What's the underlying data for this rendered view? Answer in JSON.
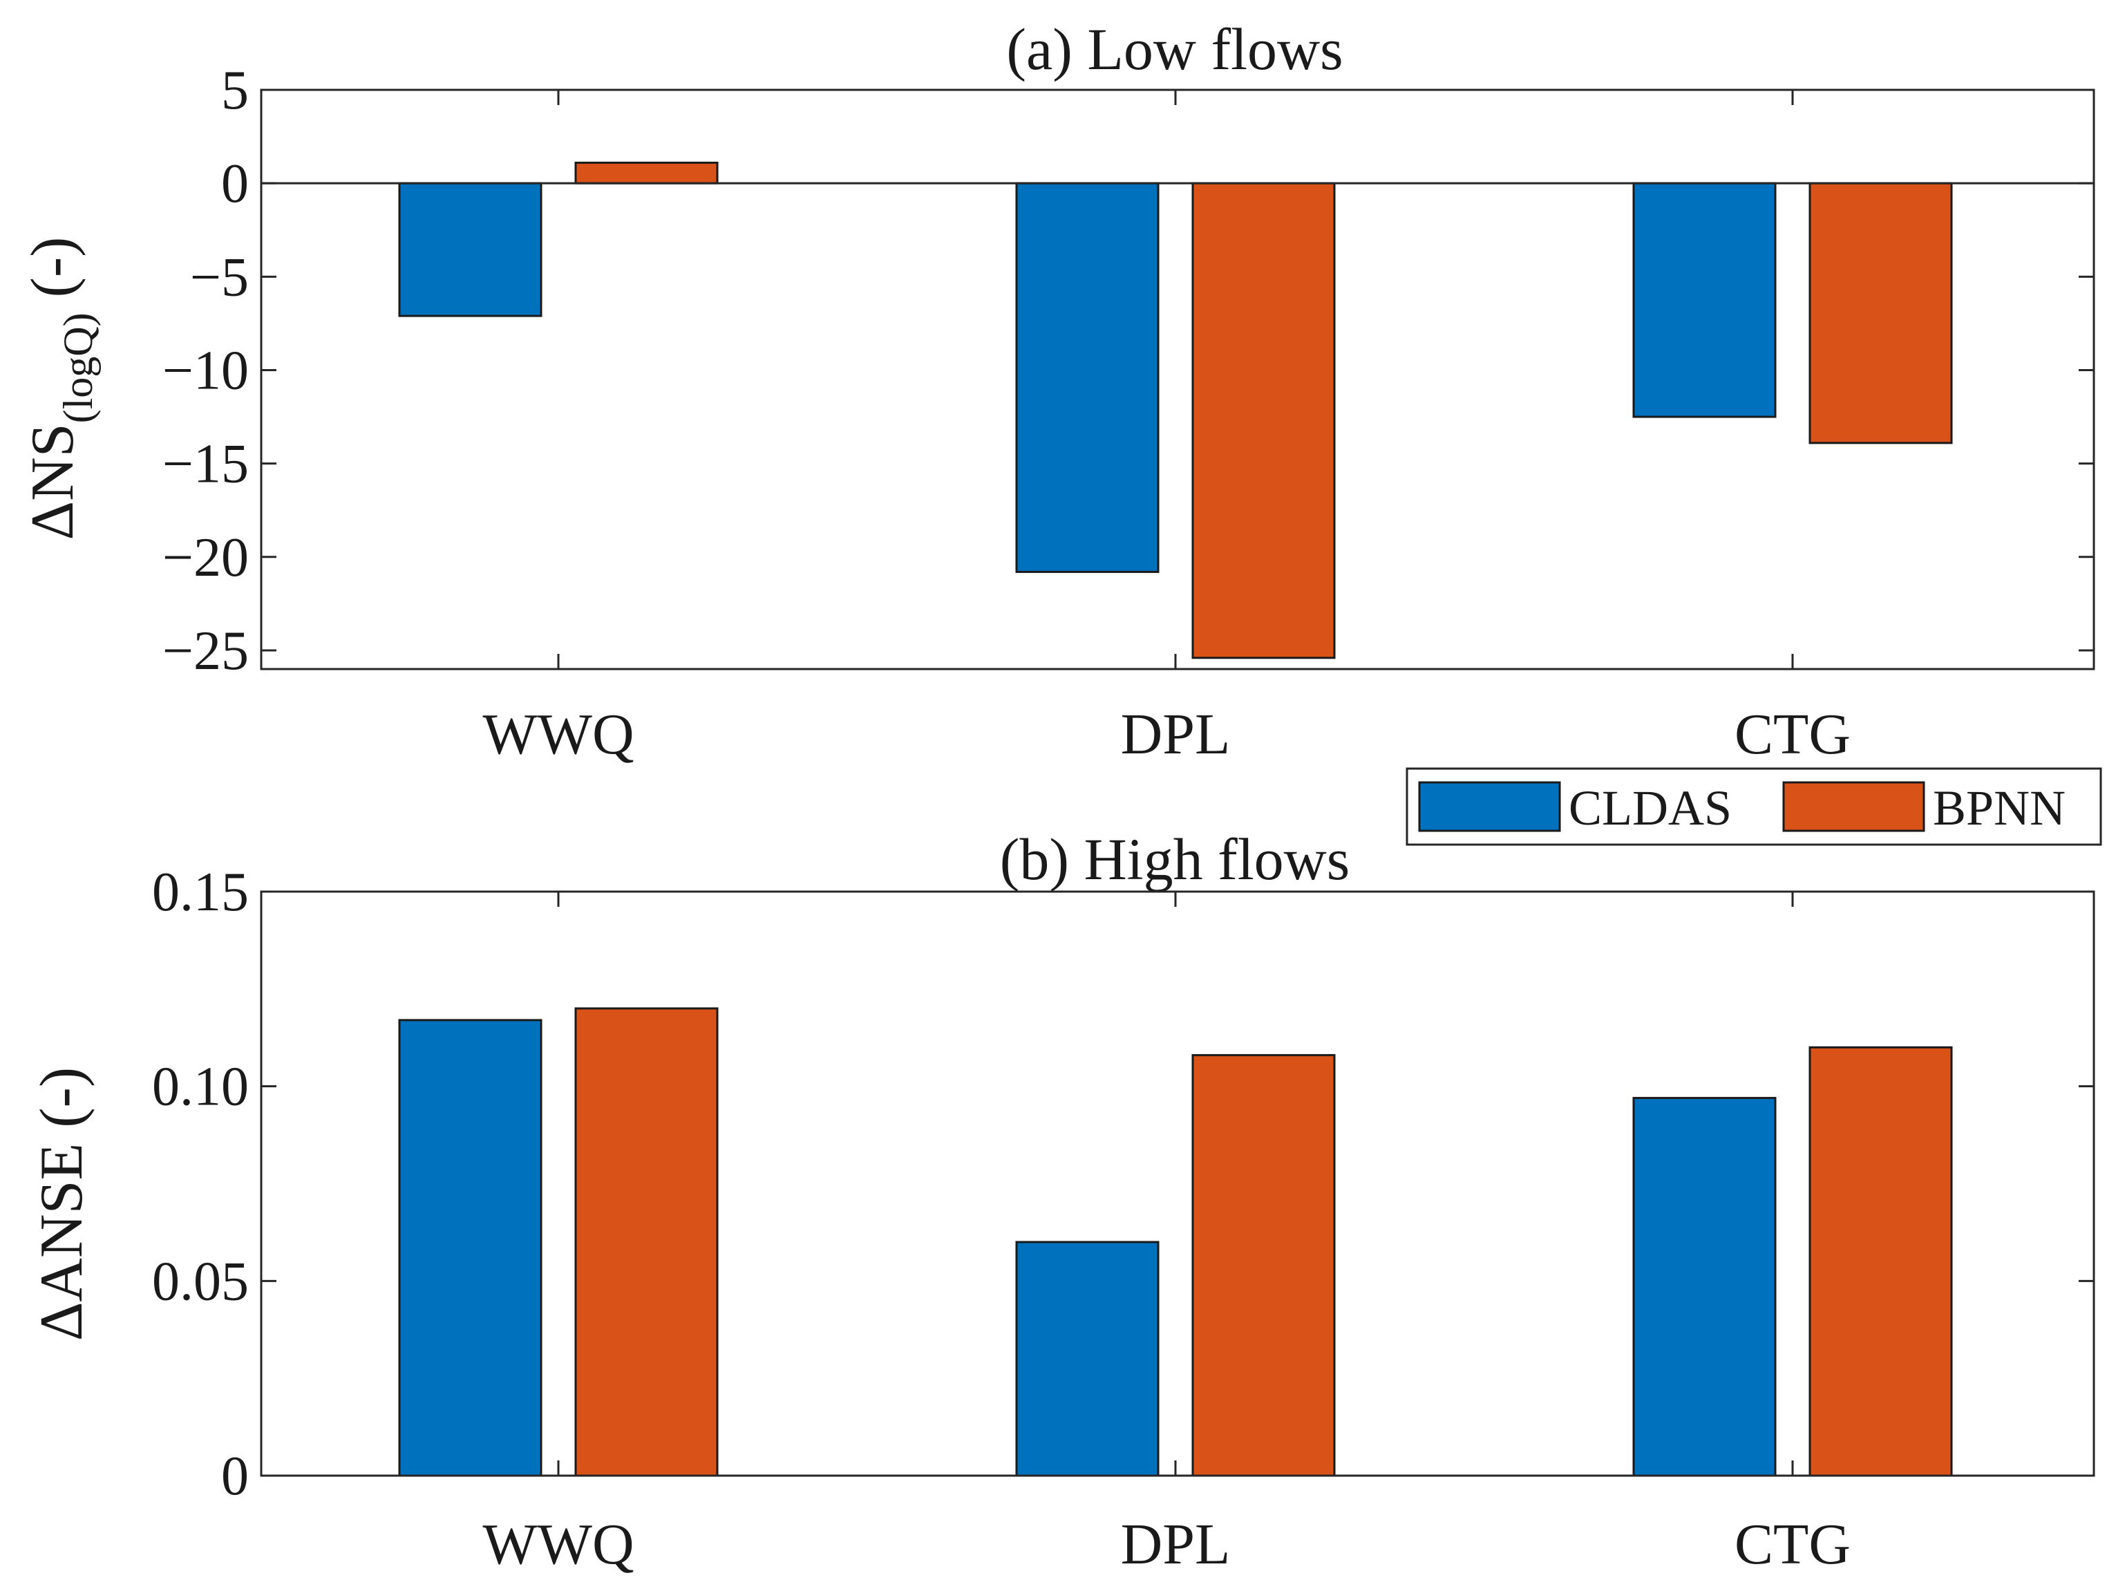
{
  "colors": {
    "CLDAS": "#0072BD",
    "BPNN": "#D95319",
    "axis": "#262626"
  },
  "legend": {
    "placement": "between-panels-right",
    "entries": [
      "CLDAS",
      "BPNN"
    ]
  },
  "chart_data": [
    {
      "type": "bar",
      "title": "(a) Low flows",
      "ylabel": {
        "main": "ΔNS",
        "sub": "(logQ)",
        "unit": " (-)"
      },
      "xlabel": "",
      "categories": [
        "WWQ",
        "DPL",
        "CTG"
      ],
      "ylim": [
        -26,
        5
      ],
      "yticks": [
        5,
        0,
        -5,
        -10,
        -15,
        -20,
        -25
      ],
      "ytick_labels": [
        "5",
        "0",
        "−5",
        "−10",
        "−15",
        "−20",
        "−25"
      ],
      "series": [
        {
          "name": "CLDAS",
          "values": [
            -7.1,
            -20.8,
            -12.5
          ]
        },
        {
          "name": "BPNN",
          "values": [
            1.1,
            -25.4,
            -13.9
          ]
        }
      ],
      "grid": false
    },
    {
      "type": "bar",
      "title": "(b) High flows",
      "ylabel": {
        "main": "ΔANSE (-)"
      },
      "xlabel": "",
      "categories": [
        "WWQ",
        "DPL",
        "CTG"
      ],
      "ylim": [
        0,
        0.15
      ],
      "yticks": [
        0,
        0.05,
        0.1,
        0.15
      ],
      "ytick_labels": [
        "0",
        "0.05",
        "0.10",
        "0.15"
      ],
      "series": [
        {
          "name": "CLDAS",
          "values": [
            0.117,
            0.06,
            0.097
          ]
        },
        {
          "name": "BPNN",
          "values": [
            0.12,
            0.108,
            0.11
          ]
        }
      ],
      "grid": false
    }
  ]
}
